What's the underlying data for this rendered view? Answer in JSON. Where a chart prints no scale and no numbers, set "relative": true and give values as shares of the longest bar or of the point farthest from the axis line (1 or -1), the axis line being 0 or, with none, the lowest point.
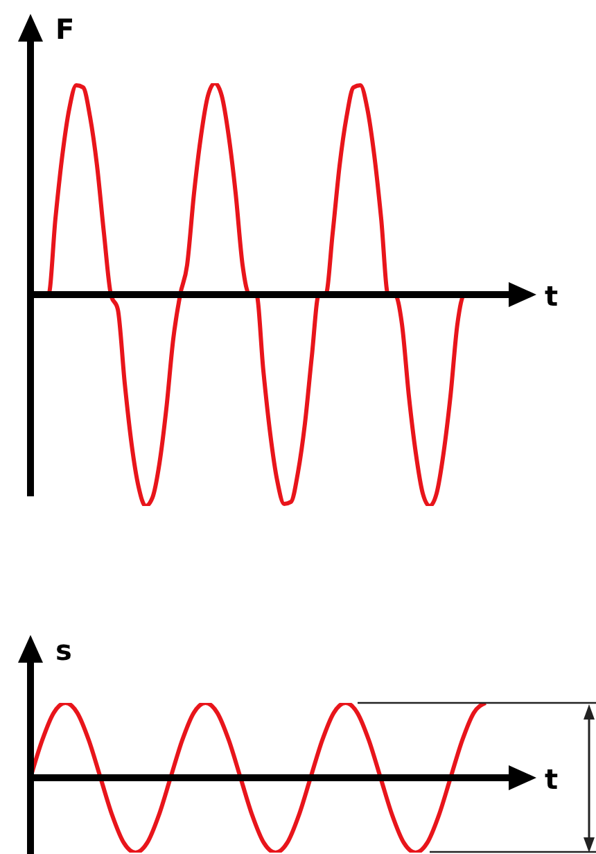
{
  "chart_data": [
    {
      "type": "line",
      "relative": true,
      "xlabel": "t",
      "ylabel": "F",
      "marker": "none",
      "categories": [
        null,
        null,
        null,
        null,
        null,
        null,
        null,
        null,
        null,
        null,
        null,
        null,
        null,
        null,
        null,
        null,
        null,
        null,
        null,
        null,
        null,
        null,
        null,
        null,
        null,
        null,
        null,
        null,
        null,
        null,
        null,
        null,
        null,
        null,
        null,
        null,
        null,
        null,
        null,
        null,
        null,
        null,
        null,
        null,
        null,
        null,
        null,
        null,
        null,
        null,
        null,
        null,
        null,
        null,
        null,
        null,
        null,
        null,
        null,
        null,
        null,
        null,
        null,
        null,
        null,
        null,
        null,
        null,
        null,
        null,
        null,
        null
      ],
      "series": [
        {
          "color": "#e8151b",
          "values": [
            0,
            0,
            0,
            0.36,
            0.66,
            0.88,
            0.99,
            0.98,
            0.84,
            0.61,
            0.29,
            0,
            -0.07,
            -0.42,
            -0.71,
            -0.91,
            -1,
            -0.96,
            -0.8,
            -0.54,
            -0.21,
            0,
            0.14,
            0.48,
            0.75,
            0.94,
            1,
            0.94,
            0.75,
            0.48,
            0.14,
            0,
            0,
            -0.36,
            -0.66,
            -0.88,
            -0.99,
            -0.98,
            -0.84,
            -0.61,
            -0.29,
            0,
            0,
            0.29,
            0.61,
            0.84,
            0.98,
            0.99,
            0.88,
            0.66,
            0.36,
            0,
            0,
            -0.14,
            -0.48,
            -0.75,
            -0.94,
            -1,
            -0.94,
            -0.75,
            -0.48,
            -0.14,
            0,
            0,
            null,
            null,
            null,
            null,
            null,
            null,
            null,
            null
          ]
        }
      ]
    },
    {
      "type": "line",
      "relative": true,
      "xlabel": "t",
      "ylabel": "s",
      "marker": "none",
      "categories": [
        null,
        null,
        null,
        null,
        null,
        null,
        null,
        null,
        null,
        null,
        null,
        null,
        null,
        null,
        null,
        null,
        null,
        null,
        null,
        null,
        null,
        null,
        null,
        null,
        null,
        null,
        null,
        null,
        null,
        null,
        null,
        null,
        null,
        null,
        null,
        null,
        null,
        null,
        null,
        null,
        null,
        null,
        null,
        null
      ],
      "series": [
        {
          "color": "#e8151b",
          "values": [
            0,
            0.5,
            0.87,
            1,
            0.87,
            0.5,
            0,
            -0.5,
            -0.87,
            -1,
            -0.87,
            -0.5,
            0,
            0.5,
            0.87,
            1,
            0.87,
            0.5,
            0,
            -0.5,
            -0.87,
            -1,
            -0.87,
            -0.5,
            0,
            0.5,
            0.87,
            1,
            0.87,
            0.5,
            0,
            -0.5,
            -0.87,
            -1,
            -0.87,
            -0.5,
            0,
            0.5,
            0.87,
            1,
            null,
            null,
            null,
            null
          ]
        }
      ]
    }
  ]
}
